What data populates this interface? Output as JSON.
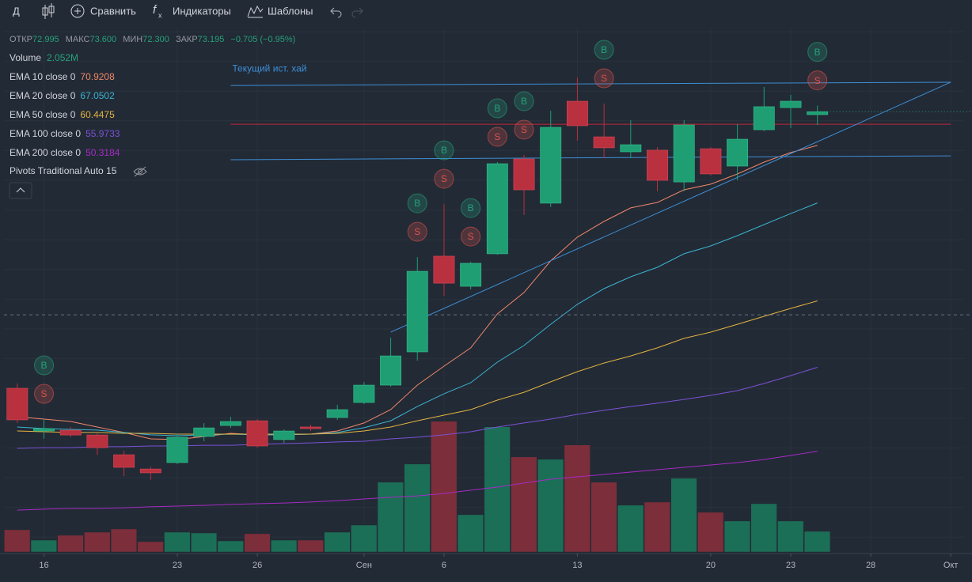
{
  "toolbar": {
    "interval": "Д",
    "compare": "Сравнить",
    "indicators": "Индикаторы",
    "templates": "Шаблоны"
  },
  "chart_data": {
    "type": "candlestick",
    "ohlc": [
      {
        "label": "ОТКР",
        "value": "72.995"
      },
      {
        "label": "МАКС",
        "value": "73.600"
      },
      {
        "label": "МИН",
        "value": "72.300"
      },
      {
        "label": "ЗАКР",
        "value": "73.195"
      }
    ],
    "change": "−0.705 (−0.95%)",
    "x": [
      0,
      1,
      2,
      3,
      4,
      5,
      6,
      7,
      8,
      9,
      10,
      11,
      12,
      13,
      14,
      15,
      16,
      17,
      18,
      19,
      20,
      21,
      22,
      23,
      24,
      25,
      26,
      27,
      28,
      29,
      30
    ],
    "xlim": [
      -0.5,
      35.5
    ],
    "xticks": [
      {
        "value": 1,
        "label": "16"
      },
      {
        "value": 6,
        "label": "23"
      },
      {
        "value": 9,
        "label": "26"
      },
      {
        "value": 13,
        "label": "Сен"
      },
      {
        "value": 16,
        "label": "6"
      },
      {
        "value": 21,
        "label": "13"
      },
      {
        "value": 26,
        "label": "20"
      },
      {
        "value": 29,
        "label": "23"
      },
      {
        "value": 32,
        "label": "28"
      },
      {
        "value": 35,
        "label": "Окт"
      }
    ],
    "ylim": [
      43.53,
      80.72
    ],
    "vlim": [
      0,
      55000000
    ],
    "up_color": "#1f9e73",
    "down_color": "#b9303f",
    "volume_up_color": "#1c6f57",
    "volume_down_color": "#7d2e3b",
    "candles": {
      "open": [
        54.56,
        51.68,
        51.73,
        51.41,
        50.08,
        49.12,
        49.55,
        51.31,
        52.05,
        52.37,
        51.1,
        51.95,
        52.59,
        53.6,
        54.77,
        57.01,
        63.46,
        61.43,
        63.62,
        70.01,
        67.03,
        73.9,
        71.5,
        70.49,
        70.6,
        68.46,
        70.7,
        69.53,
        71.98,
        73.47,
        72.995
      ],
      "high": [
        54.88,
        52.48,
        51.95,
        51.52,
        50.35,
        49.28,
        51.52,
        52.21,
        52.64,
        52.48,
        51.79,
        52.11,
        53.44,
        54.98,
        57.97,
        63.4,
        66.97,
        63.08,
        69.8,
        70.28,
        73.26,
        75.5,
        73.74,
        72.62,
        70.81,
        72.62,
        70.81,
        72.35,
        74.86,
        74.33,
        73.6
      ],
      "low": [
        52.21,
        51.15,
        51.26,
        50.08,
        48.64,
        48.38,
        49.44,
        50.99,
        51.89,
        50.56,
        50.88,
        51.68,
        52.43,
        53.49,
        54.67,
        56.42,
        60.79,
        61.22,
        63.56,
        66.23,
        66.76,
        71.24,
        70.06,
        70.06,
        67.83,
        67.83,
        68.89,
        68.57,
        71.87,
        72.09,
        72.3
      ],
      "close": [
        52.43,
        51.84,
        51.41,
        50.56,
        49.23,
        48.86,
        51.26,
        51.89,
        52.32,
        50.67,
        51.68,
        51.84,
        53.12,
        54.77,
        56.74,
        62.44,
        61.64,
        62.98,
        69.69,
        67.93,
        72.14,
        72.25,
        70.76,
        70.97,
        68.57,
        72.3,
        69.0,
        71.34,
        73.53,
        73.9,
        73.195
      ]
    },
    "volume": {
      "name": "Volume",
      "color": "#26a17a",
      "values": [
        2210000,
        1180000,
        1660000,
        1970000,
        2290000,
        1030000,
        1970000,
        1890000,
        1100000,
        1820000,
        1180000,
        1180000,
        1970000,
        2680000,
        6950000,
        8760000,
        13020000,
        3710000,
        12470000,
        9470000,
        9230000,
        10660000,
        6950000,
        4660000,
        4970000,
        7340000,
        3950000,
        3080000,
        4810000,
        3080000,
        2052000
      ],
      "value_labels": [
        null,
        null,
        null,
        null,
        null,
        null,
        null,
        null,
        null,
        null,
        null,
        null,
        null,
        null,
        null,
        null,
        null,
        null,
        null,
        null,
        null,
        null,
        null,
        null,
        null,
        null,
        null,
        null,
        null,
        null,
        "2.052M"
      ]
    },
    "series": [
      {
        "name": "EMA 10 close 0",
        "color": "#f0876a",
        "values": [
          52.64,
          52.48,
          52.32,
          51.95,
          51.58,
          51.15,
          51.1,
          51.31,
          51.52,
          51.42,
          51.42,
          51.47,
          51.68,
          52.22,
          53.12,
          54.77,
          56.05,
          57.28,
          59.57,
          61.01,
          63.14,
          64.74,
          65.8,
          66.71,
          67.08,
          67.93,
          68.31,
          69.0,
          69.8,
          70.44,
          70.9208
        ]
      },
      {
        "name": "EMA 20 close 0",
        "color": "#3bb3d0",
        "values": [
          51.95,
          51.84,
          51.79,
          51.74,
          51.58,
          51.42,
          51.36,
          51.42,
          51.47,
          51.42,
          51.42,
          51.47,
          51.58,
          51.9,
          52.37,
          53.33,
          54.19,
          54.93,
          56.32,
          57.44,
          58.87,
          60.21,
          61.27,
          62.07,
          62.71,
          63.62,
          64.15,
          64.84,
          65.59,
          66.33,
          67.0502
        ]
      },
      {
        "name": "EMA 50 close 0",
        "color": "#e3b341",
        "values": [
          51.68,
          51.63,
          51.58,
          51.58,
          51.52,
          51.52,
          51.47,
          51.47,
          51.47,
          51.47,
          51.47,
          51.47,
          51.52,
          51.68,
          51.95,
          52.37,
          52.75,
          53.12,
          53.76,
          54.29,
          54.99,
          55.68,
          56.26,
          56.74,
          57.28,
          57.92,
          58.34,
          58.87,
          59.41,
          59.94,
          60.4475
        ]
      },
      {
        "name": "EMA 100 close 0",
        "color": "#7b52d6",
        "values": [
          50.51,
          50.56,
          50.56,
          50.62,
          50.62,
          50.67,
          50.67,
          50.72,
          50.72,
          50.78,
          50.83,
          50.88,
          50.94,
          50.99,
          51.15,
          51.26,
          51.42,
          51.63,
          51.95,
          52.22,
          52.48,
          52.8,
          53.07,
          53.33,
          53.55,
          53.81,
          54.08,
          54.4,
          54.88,
          55.41,
          55.9733
        ]
      },
      {
        "name": "EMA 200 close 0",
        "color": "#a52bc4",
        "values": [
          46.35,
          46.41,
          46.46,
          46.46,
          46.51,
          46.57,
          46.62,
          46.67,
          46.73,
          46.78,
          46.83,
          46.89,
          46.99,
          47.1,
          47.21,
          47.31,
          47.47,
          47.69,
          47.9,
          48.17,
          48.43,
          48.59,
          48.75,
          48.91,
          49.07,
          49.23,
          49.39,
          49.55,
          49.76,
          50.03,
          50.3184
        ]
      }
    ],
    "pivots": "Pivots Traditional Auto 15",
    "drawings": [
      {
        "color": "#3d8fd6",
        "x": [
          8,
          35
        ],
        "y": [
          74.96,
          75.18
        ],
        "label": "Текущий ист. хай"
      },
      {
        "color": "#c2283a",
        "x": [
          8,
          35
        ],
        "y": [
          72.35,
          72.35
        ]
      },
      {
        "color": "#3d8fd6",
        "x": [
          8,
          35
        ],
        "y": [
          69.96,
          70.22
        ]
      },
      {
        "color": "#3d8fd6",
        "x": [
          14,
          35
        ],
        "y": [
          58.34,
          75.18
        ]
      }
    ],
    "price_line": 59.51,
    "signals": {
      "x": [
        1,
        15,
        16,
        17,
        18,
        19,
        22,
        30
      ],
      "buy_label": "B",
      "sell_label": "S",
      "buy_color": "#26a17a",
      "sell_color": "#d9534f"
    }
  }
}
